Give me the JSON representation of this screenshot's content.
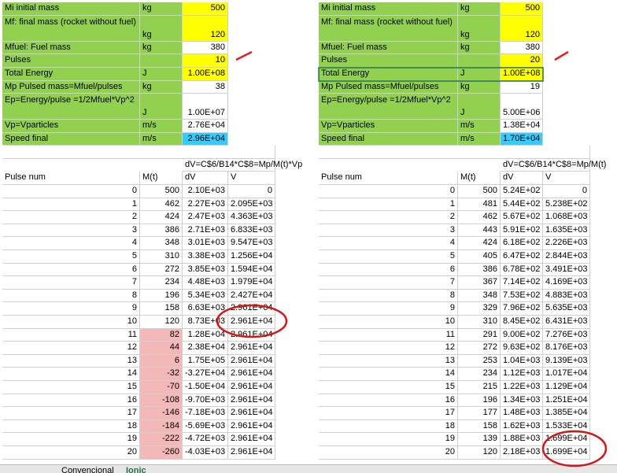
{
  "sheets": [
    {
      "params": [
        {
          "label": "Mi initial mass",
          "unit": "kg",
          "value": "500",
          "fill": "#ffff00"
        },
        {
          "label": "Mf: final mass (rocket without fuel)",
          "unit": "kg",
          "value": "120",
          "fill": "#ffff00"
        },
        {
          "label": "Mfuel: Fuel mass",
          "unit": "kg",
          "value": "380",
          "fill": "#ffffff"
        },
        {
          "label": "Pulses",
          "unit": "",
          "value": "10",
          "fill": "#ffff00"
        },
        {
          "label": "Total Energy",
          "unit": "J",
          "value": "1.00E+08",
          "fill": "#ffff00"
        },
        {
          "label": "Mp Pulsed mass=Mfuel/pulses",
          "unit": "kg",
          "value": "38",
          "fill": "#ffffff"
        },
        {
          "label": "Ep=Energy/pulse =1/2Mfuel*Vp^2",
          "unit": "J",
          "value": "1.00E+07",
          "fill": "#ffffff"
        },
        {
          "label": "Vp=Vparticles",
          "unit": "m/s",
          "value": "2.76E+04",
          "fill": "#ffffff"
        },
        {
          "label": "Speed final",
          "unit": "m/s",
          "value": "2.96E+04",
          "fill": "#33ccff"
        }
      ],
      "formula": "dV=C$6/B14*C$8=Mp/M(t)*Vp",
      "header": [
        "Pulse num",
        "M(t)",
        "dV",
        "V"
      ],
      "rows": [
        [
          "0",
          "500",
          "2.10E+03",
          "0"
        ],
        [
          "1",
          "462",
          "2.27E+03",
          "2.095E+03"
        ],
        [
          "2",
          "424",
          "2.47E+03",
          "4.363E+03"
        ],
        [
          "3",
          "386",
          "2.71E+03",
          "6.833E+03"
        ],
        [
          "4",
          "348",
          "3.01E+03",
          "9.547E+03"
        ],
        [
          "5",
          "310",
          "3.38E+03",
          "1.256E+04"
        ],
        [
          "6",
          "272",
          "3.85E+03",
          "1.594E+04"
        ],
        [
          "7",
          "234",
          "4.48E+03",
          "1.979E+04"
        ],
        [
          "8",
          "196",
          "5.34E+03",
          "2.427E+04"
        ],
        [
          "9",
          "158",
          "6.63E+03",
          "2.961E+04"
        ],
        [
          "10",
          "120",
          "8.73E+03",
          "2.961E+04"
        ],
        [
          "11",
          "82",
          "1.28E+04",
          "2.961E+04"
        ],
        [
          "12",
          "44",
          "2.38E+04",
          "2.961E+04"
        ],
        [
          "13",
          "6",
          "1.75E+05",
          "2.961E+04"
        ],
        [
          "14",
          "-32",
          "-3.27E+04",
          "2.961E+04"
        ],
        [
          "15",
          "-70",
          "-1.50E+04",
          "2.961E+04"
        ],
        [
          "16",
          "-108",
          "-9.70E+03",
          "2.961E+04"
        ],
        [
          "17",
          "-146",
          "-7.18E+03",
          "2.961E+04"
        ],
        [
          "18",
          "-184",
          "-5.69E+03",
          "2.961E+04"
        ],
        [
          "19",
          "-222",
          "-4.72E+03",
          "2.961E+04"
        ],
        [
          "20",
          "-260",
          "-4.03E+03",
          "2.961E+04"
        ]
      ]
    },
    {
      "params": [
        {
          "label": "Mi initial mass",
          "unit": "kg",
          "value": "500",
          "fill": "#ffff00"
        },
        {
          "label": "Mf: final mass (rocket without fuel)",
          "unit": "kg",
          "value": "120",
          "fill": "#ffff00"
        },
        {
          "label": "Mfuel: Fuel mass",
          "unit": "kg",
          "value": "380",
          "fill": "#ffffff"
        },
        {
          "label": "Pulses",
          "unit": "",
          "value": "20",
          "fill": "#ffff00"
        },
        {
          "label": "Total Energy",
          "unit": "J",
          "value": "1.00E+08",
          "fill": "#ffff00"
        },
        {
          "label": "Mp Pulsed mass=Mfuel/pulses",
          "unit": "kg",
          "value": "19",
          "fill": "#ffffff"
        },
        {
          "label": "Ep=Energy/pulse =1/2Mfuel*Vp^2",
          "unit": "J",
          "value": "5.00E+06",
          "fill": "#ffffff"
        },
        {
          "label": "Vp=Vparticles",
          "unit": "m/s",
          "value": "1.38E+04",
          "fill": "#ffffff"
        },
        {
          "label": "Speed final",
          "unit": "m/s",
          "value": "1.70E+04",
          "fill": "#33ccff"
        }
      ],
      "formula": "dV=C$6/B14*C$8=Mp/M(t)",
      "header": [
        "Pulse num",
        "M(t)",
        "dV",
        "V"
      ],
      "rows": [
        [
          "0",
          "500",
          "5.24E+02",
          "0"
        ],
        [
          "1",
          "481",
          "5.44E+02",
          "5.238E+02"
        ],
        [
          "2",
          "462",
          "5.67E+02",
          "1.068E+03"
        ],
        [
          "3",
          "443",
          "5.91E+02",
          "1.635E+03"
        ],
        [
          "4",
          "424",
          "6.18E+02",
          "2.226E+03"
        ],
        [
          "5",
          "405",
          "6.47E+02",
          "2.844E+03"
        ],
        [
          "6",
          "386",
          "6.78E+02",
          "3.491E+03"
        ],
        [
          "7",
          "367",
          "7.14E+02",
          "4.169E+03"
        ],
        [
          "8",
          "348",
          "7.53E+02",
          "4.883E+03"
        ],
        [
          "9",
          "329",
          "7.96E+02",
          "5.635E+03"
        ],
        [
          "10",
          "310",
          "8.45E+02",
          "6.431E+03"
        ],
        [
          "11",
          "291",
          "9.00E+02",
          "7.276E+03"
        ],
        [
          "12",
          "272",
          "9.63E+02",
          "8.176E+03"
        ],
        [
          "13",
          "253",
          "1.04E+03",
          "9.139E+03"
        ],
        [
          "14",
          "234",
          "1.12E+03",
          "1.017E+04"
        ],
        [
          "15",
          "215",
          "1.22E+03",
          "1.129E+04"
        ],
        [
          "16",
          "196",
          "1.34E+03",
          "1.251E+04"
        ],
        [
          "17",
          "177",
          "1.48E+03",
          "1.385E+04"
        ],
        [
          "18",
          "158",
          "1.62E+03",
          "1.533E+04"
        ],
        [
          "19",
          "139",
          "1.88E+03",
          "1.699E+04"
        ],
        [
          "20",
          "120",
          "2.18E+03",
          "1.699E+04"
        ]
      ]
    }
  ],
  "tabs": [
    "Convencional",
    "Ionic"
  ],
  "params_fill": "#92d050",
  "low_mass_fill": "#f4b8b8"
}
